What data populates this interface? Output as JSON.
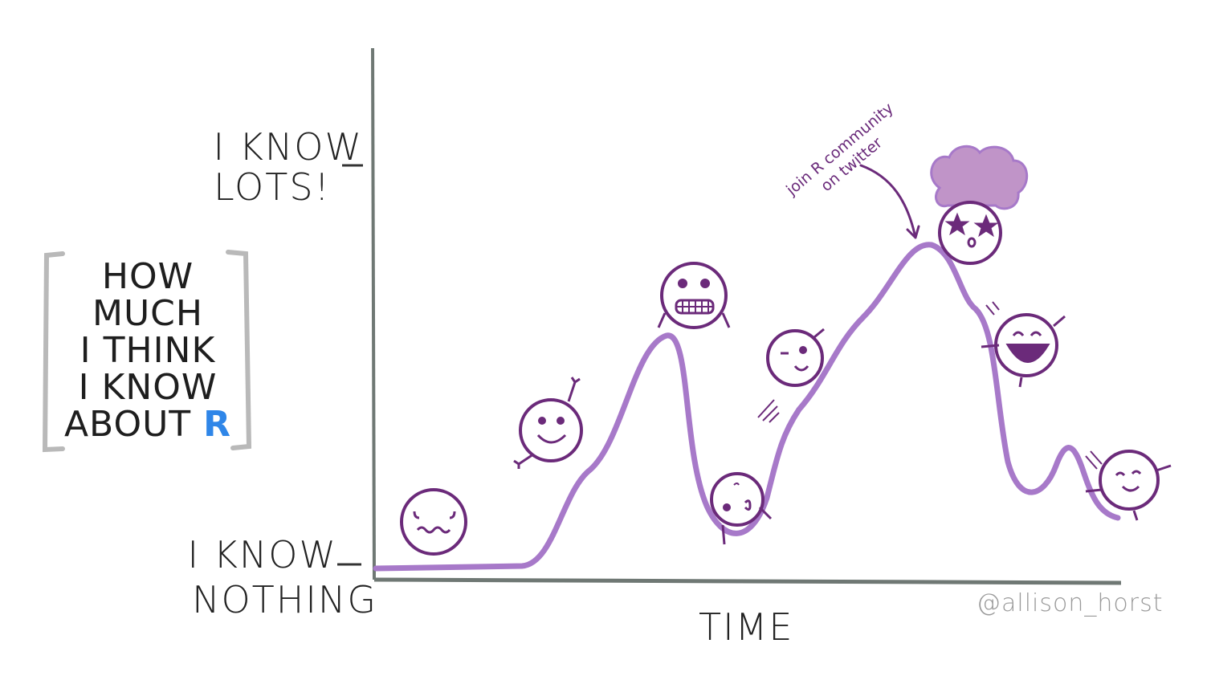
{
  "y_axis": {
    "top_label_line1": "I KNOW",
    "top_label_line2": "LOTS!",
    "bottom_label_line1": "I KNOW",
    "bottom_label_line2": "NOTHING"
  },
  "y_title": {
    "lines": [
      "HOW",
      "MUCH",
      "I THINK",
      "I KNOW",
      "ABOUT"
    ],
    "highlight": "R"
  },
  "x_axis": {
    "label": "TIME"
  },
  "annotation": {
    "line1": "join R community",
    "line2": "on twitter"
  },
  "credit": "@allison_horst",
  "colors": {
    "curve": "#a779c9",
    "face": "#6b2a7a",
    "axis": "#6f7874",
    "bracket": "#b9b9b9",
    "r_accent": "#2f86e8",
    "hair": "#c094c8"
  },
  "icons": [
    "worried-face-icon",
    "smiling-face-icon",
    "grimacing-face-icon",
    "dizzy-face-icon",
    "winking-face-icon",
    "star-eyes-face-icon",
    "laughing-face-icon",
    "content-face-icon",
    "arrow-icon"
  ]
}
